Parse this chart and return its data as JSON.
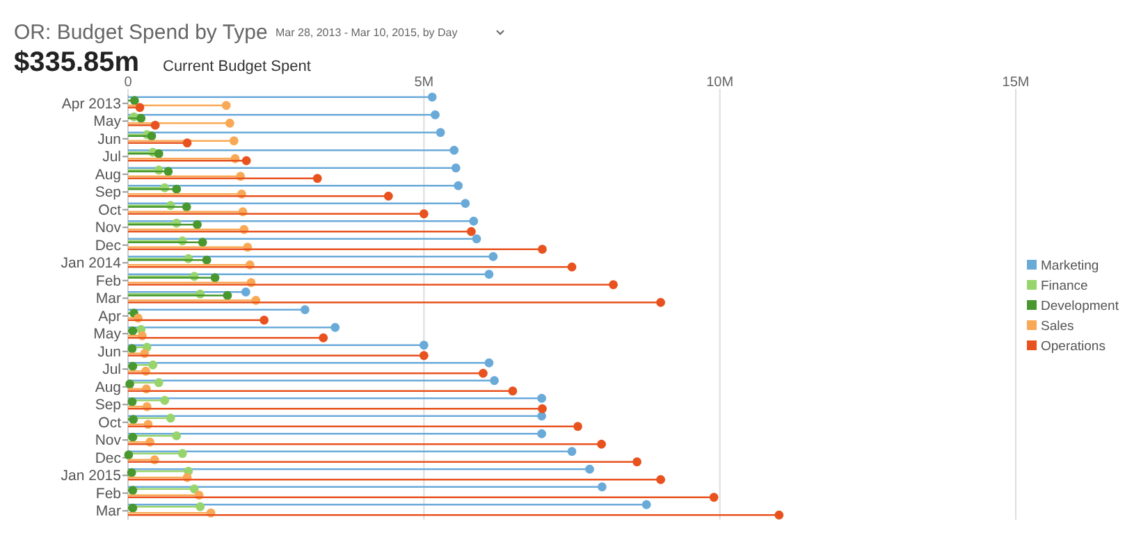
{
  "chart_data": {
    "type": "lollipop",
    "orientation": "horizontal",
    "title": "OR: Budget Spend by Type",
    "subtitle": "Mar 28, 2013 - Mar 10, 2015, by Day",
    "annotations": [
      "$335.85m",
      "Current Budget Spent"
    ],
    "categories": [
      "Apr 2013",
      "May",
      "Jun",
      "Jul",
      "Aug",
      "Sep",
      "Oct",
      "Nov",
      "Dec",
      "Jan 2014",
      "Feb",
      "Mar",
      "Apr",
      "May",
      "Jun",
      "Jul",
      "Aug",
      "Sep",
      "Oct",
      "Nov",
      "Dec",
      "Jan 2015",
      "Feb",
      "Mar"
    ],
    "series": [
      {
        "name": "Marketing",
        "color": "#6aaad9",
        "values": [
          5.14,
          5.19,
          5.28,
          5.51,
          5.54,
          5.58,
          5.7,
          5.84,
          5.89,
          6.17,
          6.1,
          1.99,
          2.99,
          3.5,
          5.0,
          6.1,
          6.19,
          6.99,
          6.99,
          6.99,
          7.5,
          7.8,
          8.01,
          8.76
        ]
      },
      {
        "name": "Finance",
        "color": "#98d46c",
        "values": [
          null,
          0.1,
          0.32,
          0.42,
          0.52,
          0.62,
          0.72,
          0.82,
          0.92,
          1.02,
          1.12,
          1.22,
          null,
          0.22,
          0.32,
          0.42,
          0.52,
          0.62,
          0.72,
          0.82,
          0.92,
          1.02,
          1.12,
          1.22
        ]
      },
      {
        "name": "Development",
        "color": "#48982f",
        "values": [
          0.11,
          0.22,
          0.4,
          0.52,
          0.68,
          0.82,
          0.99,
          1.17,
          1.26,
          1.33,
          1.47,
          1.68,
          0.1,
          0.08,
          0.07,
          0.08,
          0.03,
          0.07,
          0.09,
          0.08,
          0.01,
          0.06,
          0.08,
          0.08
        ]
      },
      {
        "name": "Sales",
        "color": "#f9a955",
        "values": [
          1.66,
          1.72,
          1.79,
          1.81,
          1.9,
          1.92,
          1.94,
          1.96,
          2.02,
          2.06,
          2.08,
          2.16,
          0.17,
          0.24,
          0.28,
          0.3,
          0.31,
          0.32,
          0.34,
          0.37,
          0.45,
          1.0,
          1.2,
          1.4
        ]
      },
      {
        "name": "Operations",
        "color": "#e8521e",
        "values": [
          0.2,
          0.46,
          1.0,
          2.0,
          3.2,
          4.4,
          5.0,
          5.8,
          7.0,
          7.5,
          8.2,
          9.0,
          2.3,
          3.3,
          5.0,
          6.0,
          6.5,
          7.0,
          7.6,
          8.0,
          8.6,
          9.0,
          9.9,
          11.0
        ]
      }
    ],
    "xlim": [
      0,
      15
    ],
    "xticks": [
      0,
      {
        "value": 5,
        "label": "5M"
      },
      {
        "value": 10,
        "label": "10M"
      },
      {
        "value": 15,
        "label": "15M"
      }
    ],
    "grid": "x",
    "legend": "right",
    "marker": "circle"
  }
}
